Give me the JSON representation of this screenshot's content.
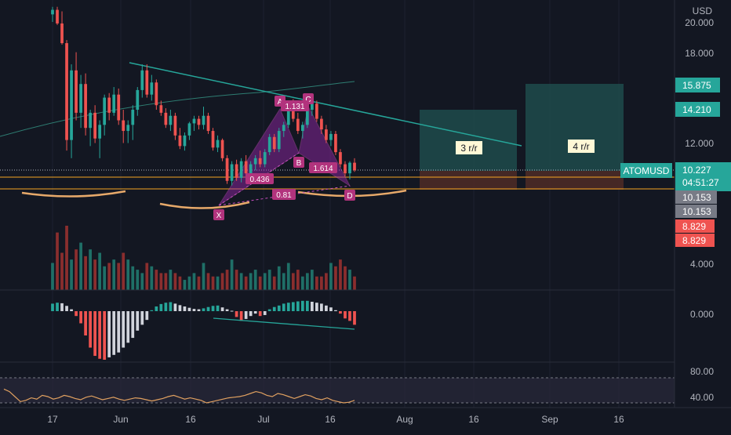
{
  "colors": {
    "background": "#131722",
    "up": "#26a69a",
    "down": "#ef5350",
    "trendline": "#26a69a",
    "pattern": "#9c27b0",
    "pattern_label": "#b2337d",
    "support": "#f5a623",
    "axis_text": "#b2b5be",
    "hist_light": "#d1d4dc",
    "rsi": "#e0a060",
    "target_zone": "#1e4b4b",
    "stop_zone": "#4b2a26"
  },
  "price_axis": {
    "currency": "USD",
    "ticks": [
      "20.000",
      "18.000",
      "12.000",
      "4.000"
    ],
    "badges": [
      {
        "name": "target-2-badge",
        "text": "15.875",
        "color": "#26a69a"
      },
      {
        "name": "target-1-badge",
        "text": "14.210",
        "color": "#26a69a"
      },
      {
        "name": "last-price-badge",
        "text": "10.227",
        "color": "#26a69a"
      },
      {
        "name": "countdown-badge",
        "text": "04:51:27",
        "color": "#26a69a"
      },
      {
        "name": "support-1-badge",
        "text": "10.153",
        "color": "#787b86"
      },
      {
        "name": "support-2-badge",
        "text": "10.153",
        "color": "#787b86"
      },
      {
        "name": "stop-1-badge",
        "text": "8.829",
        "color": "#ef5350"
      },
      {
        "name": "stop-2-badge",
        "text": "8.829",
        "color": "#ef5350"
      }
    ]
  },
  "osc_axis": {
    "ticks": [
      "0.000"
    ]
  },
  "rsi_axis": {
    "ticks": [
      "80.00",
      "40.00"
    ]
  },
  "time_axis": {
    "ticks": [
      "17",
      "Jun",
      "16",
      "Jul",
      "16",
      "Aug",
      "16",
      "Sep",
      "16"
    ]
  },
  "symbol_label": "ATOMUSD",
  "pattern": {
    "points": [
      {
        "label": "X",
        "x": 279,
        "y": 262
      },
      {
        "label": "A",
        "x": 357,
        "y": 139
      },
      {
        "label": "B",
        "x": 381,
        "y": 195
      },
      {
        "label": "C",
        "x": 393,
        "y": 136
      },
      {
        "label": "D",
        "x": 446,
        "y": 237
      }
    ],
    "ratios": [
      {
        "text": "0.436",
        "x": 331,
        "y": 229
      },
      {
        "text": "1.131",
        "x": 376,
        "y": 136
      },
      {
        "text": "1.614",
        "x": 412,
        "y": 215
      },
      {
        "text": "0.81",
        "x": 362,
        "y": 249
      }
    ]
  },
  "rr_labels": [
    "3 r/r",
    "4 r/r"
  ],
  "chart_data": {
    "type": "candlestick",
    "title": "",
    "series": [
      {
        "name": "",
        "candles": [
          [
            20.5,
            21.0,
            20.0,
            20.8
          ],
          [
            20.8,
            21.0,
            19.8,
            19.9
          ],
          [
            19.9,
            20.7,
            18.5,
            18.6
          ],
          [
            18.6,
            18.8,
            11.5,
            12.2
          ],
          [
            12.2,
            17.2,
            11.0,
            16.8
          ],
          [
            16.8,
            18.0,
            13.5,
            14.0
          ],
          [
            14.0,
            16.5,
            13.0,
            15.9
          ],
          [
            15.9,
            16.6,
            12.5,
            13.0
          ],
          [
            13.0,
            14.2,
            11.8,
            14.0
          ],
          [
            14.0,
            14.5,
            12.0,
            12.3
          ],
          [
            12.3,
            13.5,
            11.0,
            13.2
          ],
          [
            13.2,
            15.2,
            12.5,
            15.0
          ],
          [
            15.0,
            15.3,
            13.5,
            14.0
          ],
          [
            14.0,
            15.7,
            13.8,
            15.2
          ],
          [
            15.2,
            15.6,
            13.2,
            13.5
          ],
          [
            13.5,
            14.2,
            12.0,
            12.8
          ],
          [
            12.8,
            13.5,
            12.0,
            13.2
          ],
          [
            13.2,
            14.5,
            12.2,
            14.2
          ],
          [
            14.2,
            15.7,
            13.8,
            15.5
          ],
          [
            15.5,
            17.2,
            15.0,
            16.8
          ],
          [
            16.8,
            17.2,
            15.0,
            15.2
          ],
          [
            15.2,
            16.5,
            14.8,
            16.0
          ],
          [
            16.0,
            16.2,
            14.2,
            14.5
          ],
          [
            14.5,
            14.8,
            13.8,
            14.0
          ],
          [
            14.0,
            14.3,
            13.0,
            13.2
          ],
          [
            13.2,
            14.2,
            12.8,
            13.8
          ],
          [
            13.8,
            14.0,
            12.2,
            12.5
          ],
          [
            12.5,
            13.0,
            11.6,
            11.8
          ],
          [
            11.8,
            12.7,
            11.5,
            12.5
          ],
          [
            12.5,
            13.4,
            12.2,
            13.3
          ],
          [
            13.3,
            13.8,
            12.8,
            13.6
          ],
          [
            13.6,
            13.8,
            12.9,
            13.2
          ],
          [
            13.2,
            14.4,
            12.9,
            13.8
          ],
          [
            13.8,
            14.0,
            12.6,
            12.8
          ],
          [
            12.8,
            13.0,
            11.5,
            11.7
          ],
          [
            11.7,
            12.5,
            11.4,
            12.2
          ],
          [
            12.2,
            12.3,
            10.8,
            11.0
          ],
          [
            11.0,
            11.2,
            9.3,
            9.5
          ],
          [
            9.5,
            10.8,
            9.2,
            10.6
          ],
          [
            10.6,
            10.9,
            9.5,
            9.7
          ],
          [
            9.7,
            11.0,
            9.4,
            10.8
          ],
          [
            10.8,
            11.2,
            9.8,
            10.0
          ],
          [
            10.0,
            10.8,
            9.6,
            10.6
          ],
          [
            10.6,
            11.2,
            10.2,
            11.0
          ],
          [
            11.0,
            11.5,
            10.4,
            10.6
          ],
          [
            10.6,
            11.6,
            10.4,
            11.4
          ],
          [
            11.4,
            12.6,
            11.2,
            12.4
          ],
          [
            12.4,
            12.6,
            11.4,
            11.6
          ],
          [
            11.6,
            13.0,
            11.4,
            12.8
          ],
          [
            12.8,
            13.4,
            12.4,
            13.2
          ],
          [
            13.2,
            14.8,
            13.0,
            14.6
          ],
          [
            14.6,
            14.9,
            13.4,
            13.6
          ],
          [
            13.6,
            14.0,
            12.6,
            12.8
          ],
          [
            12.8,
            13.4,
            12.3,
            13.2
          ],
          [
            13.2,
            14.4,
            13.0,
            14.2
          ],
          [
            14.2,
            14.9,
            13.8,
            14.6
          ],
          [
            14.6,
            14.8,
            13.4,
            13.6
          ],
          [
            13.6,
            13.8,
            12.6,
            12.9
          ],
          [
            12.9,
            13.2,
            12.0,
            12.2
          ],
          [
            12.2,
            12.8,
            11.8,
            12.6
          ],
          [
            12.6,
            12.8,
            11.2,
            11.4
          ],
          [
            11.4,
            11.6,
            10.4,
            10.6
          ],
          [
            10.6,
            10.8,
            9.8,
            10.0
          ],
          [
            10.0,
            10.8,
            9.6,
            10.7
          ],
          [
            10.7,
            11.0,
            10.1,
            10.2
          ]
        ]
      },
      {
        "name": "",
        "values": [
          40,
          85,
          55,
          95,
          45,
          60,
          70,
          50,
          60,
          45,
          55,
          35,
          40,
          45,
          40,
          55,
          45,
          35,
          30,
          25,
          40,
          35,
          30,
          25,
          25,
          30,
          25,
          20,
          15,
          20,
          25,
          20,
          40,
          25,
          20,
          20,
          25,
          30,
          45,
          30,
          25,
          20,
          25,
          30,
          20,
          25,
          30,
          20,
          35,
          25,
          40,
          25,
          30,
          20,
          25,
          30,
          20,
          20,
          25,
          40,
          35,
          45,
          35,
          30,
          20
        ]
      }
    ],
    "oscillator": [
      0.4,
      0.45,
      0.42,
      0.28,
      0.1,
      -0.1,
      -0.25,
      -0.5,
      -0.75,
      -0.92,
      -0.98,
      -1.0,
      -0.95,
      -0.9,
      -0.85,
      -0.75,
      -0.65,
      -0.55,
      -0.4,
      -0.28,
      -0.18,
      0.05,
      0.25,
      0.38,
      0.45,
      0.48,
      0.4,
      0.32,
      0.25,
      0.18,
      0.12,
      0.1,
      0.15,
      0.22,
      0.28,
      0.3,
      0.2,
      0.1,
      0.02,
      -0.12,
      -0.2,
      -0.16,
      -0.1,
      -0.05,
      -0.1,
      -0.08,
      0.1,
      0.22,
      0.3,
      0.4,
      0.45,
      0.48,
      0.52,
      0.55,
      0.55,
      0.5,
      0.45,
      0.4,
      0.3,
      0.2,
      0.05,
      -0.05,
      -0.15,
      -0.2,
      -0.28
    ],
    "rsi": [
      62,
      58,
      50,
      42,
      44,
      48,
      46,
      52,
      50,
      46,
      48,
      52,
      50,
      47,
      45,
      49,
      51,
      48,
      45,
      47,
      49,
      46,
      44,
      46,
      48,
      47,
      45,
      43,
      45,
      47,
      50,
      52,
      49,
      46,
      48,
      46,
      44,
      40,
      42,
      44,
      46,
      48,
      49,
      50,
      52,
      55,
      58,
      56,
      52,
      50,
      55,
      53,
      50,
      47,
      50,
      53,
      51,
      47,
      45,
      48,
      44,
      42,
      40,
      41,
      44
    ],
    "price_range": [
      0,
      22
    ],
    "rsi_range": [
      30,
      85
    ],
    "x_labels": [
      "17",
      "Jun",
      "16",
      "Jul",
      "16",
      "Aug",
      "16",
      "Sep",
      "16"
    ]
  }
}
